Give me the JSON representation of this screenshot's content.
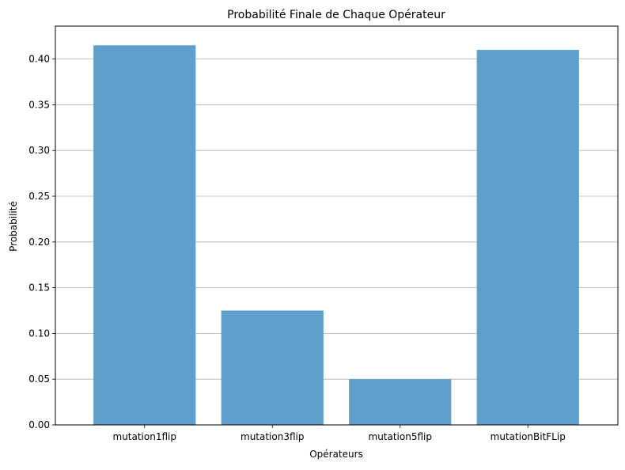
{
  "chart_data": {
    "type": "bar",
    "title": "Probabilité Finale de Chaque Opérateur",
    "xlabel": "Opérateurs",
    "ylabel": "Probabilité",
    "categories": [
      "mutation1flip",
      "mutation3flip",
      "mutation5flip",
      "mutationBitFLip"
    ],
    "values": [
      0.415,
      0.125,
      0.05,
      0.41
    ],
    "ylim": [
      0,
      0.436
    ],
    "yticks": [
      "0.00",
      "0.05",
      "0.10",
      "0.15",
      "0.20",
      "0.25",
      "0.30",
      "0.35",
      "0.40"
    ],
    "ytick_values": [
      0,
      0.05,
      0.1,
      0.15,
      0.2,
      0.25,
      0.3,
      0.35,
      0.4
    ],
    "grid": "y",
    "bar_color": "#5f9fcb",
    "grid_color": "#b0b0b0",
    "axis_color": "#000000"
  }
}
